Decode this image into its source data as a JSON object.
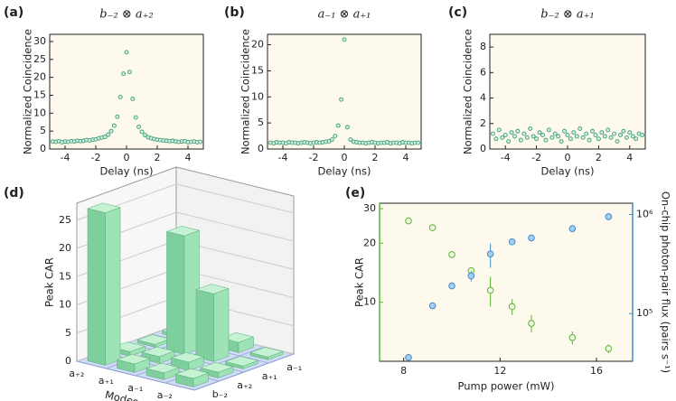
{
  "chart_data": [
    {
      "panel_label": "(a)",
      "type": "scatter",
      "title": "b₋₂ ⊗ a₊₂",
      "x_label": "Delay (ns)",
      "y_label": "Normalized Coincidence",
      "color": "#3f9e78",
      "x": [
        -4.8,
        -4.6,
        -4.4,
        -4.2,
        -4,
        -3.8,
        -3.6,
        -3.4,
        -3.2,
        -3,
        -2.8,
        -2.6,
        -2.4,
        -2.2,
        -2,
        -1.8,
        -1.6,
        -1.4,
        -1.2,
        -1,
        -0.8,
        -0.6,
        -0.4,
        -0.2,
        0,
        0.2,
        0.4,
        0.6,
        0.8,
        1,
        1.2,
        1.4,
        1.6,
        1.8,
        2,
        2.2,
        2.4,
        2.6,
        2.8,
        3,
        3.2,
        3.4,
        3.6,
        3.8,
        4,
        4.2,
        4.4,
        4.6,
        4.8
      ],
      "values": [
        2.1,
        2,
        2.2,
        1.9,
        2.1,
        2,
        2.2,
        2.1,
        2.3,
        2.2,
        2.3,
        2.5,
        2.4,
        2.6,
        2.7,
        3,
        3.2,
        3.4,
        4,
        5,
        6.5,
        9,
        14.5,
        21,
        27,
        21.5,
        14,
        8.8,
        6.2,
        4.8,
        3.9,
        3.3,
        3,
        2.8,
        2.6,
        2.5,
        2.4,
        2.3,
        2.2,
        2.3,
        2.1,
        2,
        2.1,
        2.2,
        1.9,
        2,
        2.1,
        1.9,
        2
      ],
      "xlim": [
        -5,
        5
      ],
      "xticks": [
        -4,
        -2,
        0,
        2,
        4
      ],
      "ylim": [
        0,
        32
      ],
      "yticks": [
        0,
        5,
        10,
        15,
        20,
        25,
        30
      ]
    },
    {
      "panel_label": "(b)",
      "type": "scatter",
      "title": "a₋₁ ⊗ a₊₁",
      "x_label": "Delay (ns)",
      "y_label": "Normalized Coincidence",
      "color": "#3f9e78",
      "x": [
        -4.8,
        -4.6,
        -4.4,
        -4.2,
        -4,
        -3.8,
        -3.6,
        -3.4,
        -3.2,
        -3,
        -2.8,
        -2.6,
        -2.4,
        -2.2,
        -2,
        -1.8,
        -1.6,
        -1.4,
        -1.2,
        -1,
        -0.8,
        -0.6,
        -0.4,
        -0.2,
        0,
        0.2,
        0.4,
        0.6,
        0.8,
        1,
        1.2,
        1.4,
        1.6,
        1.8,
        2,
        2.2,
        2.4,
        2.6,
        2.8,
        3,
        3.2,
        3.4,
        3.6,
        3.8,
        4,
        4.2,
        4.4,
        4.6,
        4.8
      ],
      "values": [
        1.2,
        1.1,
        1.3,
        1.2,
        1.2,
        1.1,
        1.3,
        1.2,
        1.2,
        1.1,
        1.2,
        1.3,
        1.2,
        1.1,
        1.2,
        1.3,
        1.2,
        1.3,
        1.4,
        1.5,
        1.8,
        2.5,
        4.5,
        9.5,
        21,
        4.2,
        1.8,
        1.4,
        1.3,
        1.2,
        1.2,
        1.1,
        1.2,
        1.3,
        1.2,
        1.1,
        1.2,
        1.2,
        1.3,
        1.1,
        1.2,
        1.2,
        1.1,
        1.3,
        1.2,
        1.2,
        1.1,
        1.2,
        1.2
      ],
      "xlim": [
        -5,
        5
      ],
      "xticks": [
        -4,
        -2,
        0,
        2,
        4
      ],
      "ylim": [
        0,
        22
      ],
      "yticks": [
        0,
        5,
        10,
        15,
        20
      ]
    },
    {
      "panel_label": "(c)",
      "type": "scatter",
      "title": "b₋₂ ⊗ a₊₁",
      "x_label": "Delay (ns)",
      "y_label": "Normalized Coincidence",
      "color": "#3f9e78",
      "x": [
        -4.8,
        -4.6,
        -4.4,
        -4.2,
        -4,
        -3.8,
        -3.6,
        -3.4,
        -3.2,
        -3,
        -2.8,
        -2.6,
        -2.4,
        -2.2,
        -2,
        -1.8,
        -1.6,
        -1.4,
        -1.2,
        -1,
        -0.8,
        -0.6,
        -0.4,
        -0.2,
        0,
        0.2,
        0.4,
        0.6,
        0.8,
        1,
        1.2,
        1.4,
        1.6,
        1.8,
        2,
        2.2,
        2.4,
        2.6,
        2.8,
        3,
        3.2,
        3.4,
        3.6,
        3.8,
        4,
        4.2,
        4.4,
        4.6,
        4.8
      ],
      "values": [
        1.2,
        0.8,
        1.5,
        0.9,
        1.1,
        0.6,
        1.3,
        1,
        1.4,
        0.7,
        1.2,
        0.9,
        1.6,
        1,
        0.8,
        1.3,
        1.1,
        0.7,
        1.5,
        0.9,
        1.2,
        1,
        0.6,
        1.4,
        1.1,
        0.8,
        1.3,
        1,
        1.6,
        0.9,
        1.2,
        0.7,
        1.4,
        1.1,
        0.8,
        1.3,
        1,
        1.5,
        0.9,
        1.2,
        0.6,
        1.1,
        1.4,
        0.9,
        1.3,
        1,
        0.8,
        1.2,
        1.1
      ],
      "xlim": [
        -5,
        5
      ],
      "xticks": [
        -4,
        -2,
        0,
        2,
        4
      ],
      "ylim": [
        0,
        9
      ],
      "yticks": [
        0,
        2,
        4,
        6,
        8
      ]
    },
    {
      "panel_label": "(d)",
      "type": "bar3d",
      "z_label": "Peak CAR",
      "axis_label": "Modes",
      "color": "#8fdcaa",
      "rows": [
        "a₊₂",
        "a₊₁",
        "a₋₁",
        "a₋₂"
      ],
      "columns": [
        "b₋₂",
        "a₊₂",
        "a₊₁",
        "a₋₁"
      ],
      "values": [
        [
          27,
          0.8,
          0.5,
          0.5
        ],
        [
          1.5,
          1.2,
          21,
          1.5
        ],
        [
          1.2,
          1.5,
          12,
          1.8
        ],
        [
          1.5,
          1,
          0.5,
          0.5
        ]
      ],
      "zlim": [
        0,
        28
      ],
      "zticks": [
        0,
        5,
        10,
        15,
        20,
        25
      ]
    },
    {
      "panel_label": "(e)",
      "type": "scatter_dual",
      "x_label": "Pump power (mW)",
      "y_label": "Peak CAR",
      "y2_label": "On-chip photon-pair flux (pairs s⁻¹)",
      "xlim": [
        7,
        17.5
      ],
      "xticks": [
        8,
        12,
        16
      ],
      "ylim": [
        5,
        32
      ],
      "yticks": [
        10,
        20,
        30
      ],
      "log_y": true,
      "y2lim": [
        33000,
        1300000
      ],
      "y2ticks": [
        {
          "value": 100000,
          "label": "10⁵"
        },
        {
          "value": 1000000,
          "label": "10⁶"
        }
      ],
      "log_y2": true,
      "series": [
        {
          "color": "#5cb531",
          "x": [
            8.2,
            9.2,
            10,
            10.8,
            11.6,
            12.5,
            13.3,
            15,
            16.5
          ],
          "values": [
            26,
            24,
            17.5,
            14.5,
            11.5,
            9.5,
            7.8,
            6.6,
            5.8
          ],
          "errors": [
            1,
            1,
            0.5,
            0.6,
            2,
            0.9,
            0.8,
            0.5,
            0.3
          ]
        },
        {
          "color": "#3b8ed0",
          "axis": "y2",
          "x": [
            8.2,
            9.2,
            10,
            10.8,
            11.6,
            12.5,
            13.3,
            15,
            16.5
          ],
          "values": [
            36000,
            120000,
            190000,
            240000,
            400000,
            530000,
            580000,
            720000,
            950000
          ],
          "errors": [
            1500,
            4000,
            8000,
            30000,
            110000,
            30000,
            30000,
            20000,
            30000
          ]
        }
      ]
    }
  ]
}
